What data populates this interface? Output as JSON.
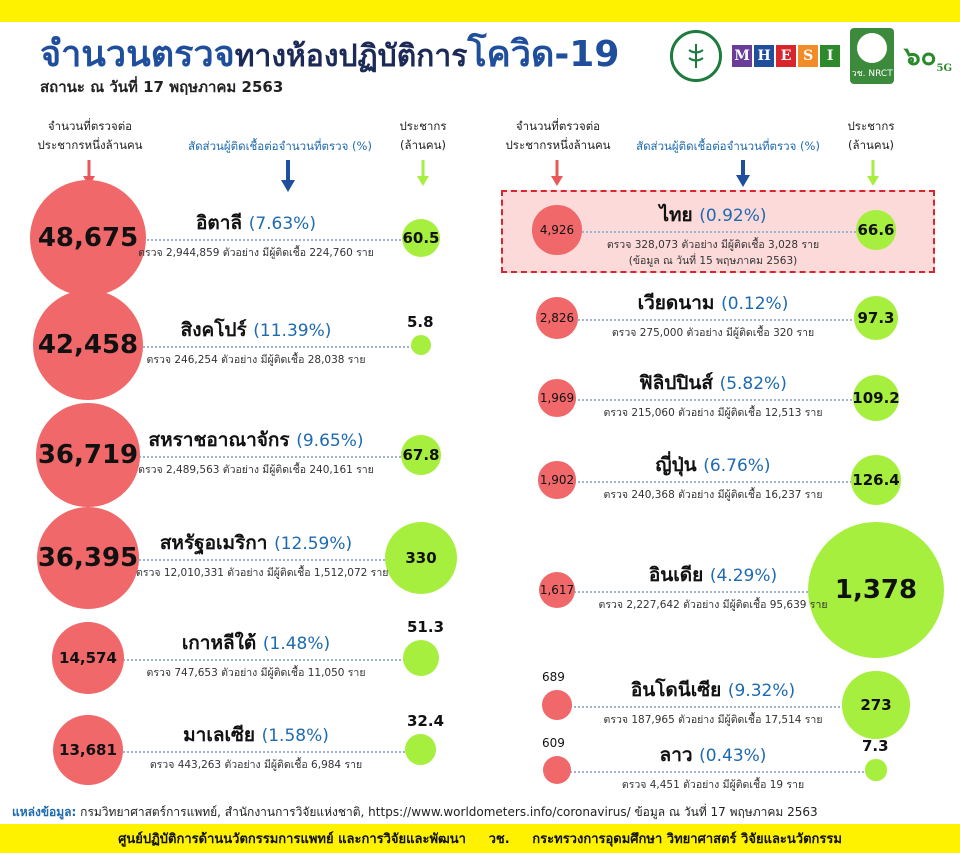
{
  "header": {
    "title_part1": "จำนวนตรวจ",
    "title_part2": "ทางห้องปฏิบัติการ",
    "title_part3": "โควิด-19",
    "subtitle": "สถานะ ณ วันที่ 17 พฤษภาคม 2563"
  },
  "logos": {
    "mhesi_letters": [
      "M",
      "H",
      "E",
      "S",
      "I"
    ],
    "mhesi_colors": [
      "#6a3d9a",
      "#1f4e9c",
      "#d8262f",
      "#f28c28",
      "#2c8a2c"
    ],
    "nrct": "วช. NRCT",
    "anniv": "๖๐",
    "anniv_suffix": "5G"
  },
  "column_headers": {
    "tests_per_million": "จำนวนที่ตรวจต่อประชากรหนึ่งล้านคน",
    "positive_ratio": "สัดส่วนผู้ติดเชื้อต่อจำนวนที่ตรวจ (%)",
    "population": "ประชากร (ล้านคน)"
  },
  "colors": {
    "tests_circle": "#f0686a",
    "population_circle": "#a6ef3f",
    "accent_blue": "#1e6ab0",
    "title_blue": "#1f4e9c",
    "banner_yellow": "#fff200",
    "highlight_border": "#d8262f"
  },
  "chart_data": {
    "type": "scatter",
    "title": "จำนวนตรวจทางห้องปฏิบัติการโควิด-19",
    "subtitle": "สถานะ ณ วันที่ 17 พฤษภาคม 2563",
    "encoding": "proportional circles",
    "series": [
      {
        "name": "จำนวนที่ตรวจต่อประชากรหนึ่งล้านคน",
        "color": "#f0686a"
      },
      {
        "name": "ประชากร (ล้านคน)",
        "color": "#a6ef3f"
      }
    ],
    "countries": [
      {
        "name": "อิตาลี",
        "pct": "(7.63%)",
        "tests_per_million": 48675,
        "tests_label": "48,675",
        "population": 60.5,
        "population_label": "60.5",
        "detail": "ตรวจ 2,944,859 ตัวอย่าง มีผู้ติดเชื้อ 224,760 ราย",
        "note": ""
      },
      {
        "name": "สิงคโปร์",
        "pct": "(11.39%)",
        "tests_per_million": 42458,
        "tests_label": "42,458",
        "population": 5.8,
        "population_label": "5.8",
        "detail": "ตรวจ 246,254 ตัวอย่าง มีผู้ติดเชื้อ 28,038 ราย",
        "note": ""
      },
      {
        "name": "สหราชอาณาจักร",
        "pct": "(9.65%)",
        "tests_per_million": 36719,
        "tests_label": "36,719",
        "population": 67.8,
        "population_label": "67.8",
        "detail": "ตรวจ 2,489,563 ตัวอย่าง มีผู้ติดเชื้อ 240,161 ราย",
        "note": ""
      },
      {
        "name": "สหรัฐอเมริกา",
        "pct": "(12.59%)",
        "tests_per_million": 36395,
        "tests_label": "36,395",
        "population": 330,
        "population_label": "330",
        "detail": "ตรวจ 12,010,331 ตัวอย่าง มีผู้ติดเชื้อ 1,512,072 ราย",
        "note": ""
      },
      {
        "name": "เกาหลีใต้",
        "pct": "(1.48%)",
        "tests_per_million": 14574,
        "tests_label": "14,574",
        "population": 51.3,
        "population_label": "51.3",
        "detail": "ตรวจ 747,653 ตัวอย่าง มีผู้ติดเชื้อ 11,050 ราย",
        "note": ""
      },
      {
        "name": "มาเลเซีย",
        "pct": "(1.58%)",
        "tests_per_million": 13681,
        "tests_label": "13,681",
        "population": 32.4,
        "population_label": "32.4",
        "detail": "ตรวจ 443,263 ตัวอย่าง มีผู้ติดเชื้อ 6,984 ราย",
        "note": ""
      },
      {
        "name": "ไทย",
        "pct": "(0.92%)",
        "tests_per_million": 4926,
        "tests_label": "4,926",
        "population": 66.6,
        "population_label": "66.6",
        "detail": "ตรวจ 328,073 ตัวอย่าง มีผู้ติดเชื้อ 3,028 ราย",
        "note": "(ข้อมูล ณ วันที่ 15 พฤษภาคม 2563)"
      },
      {
        "name": "เวียดนาม",
        "pct": "(0.12%)",
        "tests_per_million": 2826,
        "tests_label": "2,826",
        "population": 97.3,
        "population_label": "97.3",
        "detail": "ตรวจ 275,000 ตัวอย่าง มีผู้ติดเชื้อ 320 ราย",
        "note": ""
      },
      {
        "name": "ฟิลิปปินส์",
        "pct": "(5.82%)",
        "tests_per_million": 1969,
        "tests_label": "1,969",
        "population": 109.2,
        "population_label": "109.2",
        "detail": "ตรวจ 215,060 ตัวอย่าง มีผู้ติดเชื้อ 12,513 ราย",
        "note": ""
      },
      {
        "name": "ญี่ปุ่น",
        "pct": "(6.76%)",
        "tests_per_million": 1902,
        "tests_label": "1,902",
        "population": 126.4,
        "population_label": "126.4",
        "detail": "ตรวจ 240,368 ตัวอย่าง มีผู้ติดเชื้อ 16,237 ราย",
        "note": ""
      },
      {
        "name": "อินเดีย",
        "pct": "(4.29%)",
        "tests_per_million": 1617,
        "tests_label": "1,617",
        "population": 1378,
        "population_label": "1,378",
        "detail": "ตรวจ 2,227,642 ตัวอย่าง มีผู้ติดเชื้อ 95,639 ราย",
        "note": ""
      },
      {
        "name": "อินโดนีเซีย",
        "pct": "(9.32%)",
        "tests_per_million": 689,
        "tests_label": "689",
        "population": 273,
        "population_label": "273",
        "detail": "ตรวจ 187,965 ตัวอย่าง มีผู้ติดเชื้อ 17,514 ราย",
        "note": ""
      },
      {
        "name": "ลาว",
        "pct": "(0.43%)",
        "tests_per_million": 609,
        "tests_label": "609",
        "population": 7.3,
        "population_label": "7.3",
        "detail": "ตรวจ 4,451 ตัวอย่าง มีผู้ติดเชื้อ 19 ราย",
        "note": ""
      }
    ]
  },
  "source": {
    "label": "แหล่งข้อมูล:",
    "text": "กรมวิทยาศาสตร์การแพทย์, สำนักงานการวิจัยแห่งชาติ, https://www.worldometers.info/coronavirus/ ข้อมูล ณ วันที่ 17 พฤษภาคม 2563"
  },
  "footer": {
    "text": "ศูนย์ปฏิบัติการด้านนวัตกรรมการแพทย์ และการวิจัยและพัฒนา     วช.     กระทรวงการอุดมศึกษา วิทยาศาสตร์ วิจัยและนวัตกรรม"
  }
}
